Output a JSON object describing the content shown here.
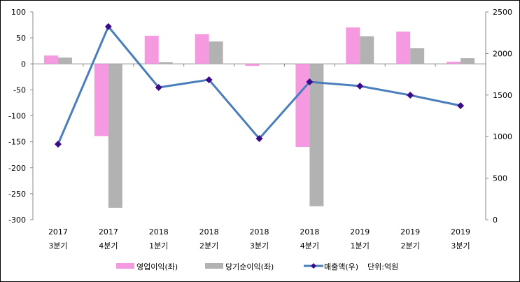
{
  "chart_data": {
    "type": "bar+line",
    "categories": [
      {
        "year": "2017",
        "quarter": "3분기"
      },
      {
        "year": "2017",
        "quarter": "4분기"
      },
      {
        "year": "2018",
        "quarter": "1분기"
      },
      {
        "year": "2018",
        "quarter": "2분기"
      },
      {
        "year": "2018",
        "quarter": "3분기"
      },
      {
        "year": "2018",
        "quarter": "4분기"
      },
      {
        "year": "2019",
        "quarter": "1분기"
      },
      {
        "year": "2019",
        "quarter": "2분기"
      },
      {
        "year": "2019",
        "quarter": "3분기"
      }
    ],
    "series": [
      {
        "name": "영업이익(좌)",
        "type": "bar",
        "axis": "left",
        "color": "#f59ae0",
        "values": [
          16,
          -139,
          54,
          57,
          -4,
          -160,
          70,
          62,
          4
        ]
      },
      {
        "name": "당기순이익(좌)",
        "type": "bar",
        "axis": "left",
        "color": "#b2b2b2",
        "values": [
          12,
          -277,
          3,
          43,
          0,
          -274,
          53,
          30,
          11
        ]
      },
      {
        "name": "매출액(우)",
        "type": "line",
        "axis": "right",
        "color": "#4a7ebb",
        "marker_color": "#3a0a8a",
        "values": [
          909,
          2323,
          1591,
          1684,
          976,
          1658,
          1608,
          1498,
          1372
        ]
      }
    ],
    "left_axis": {
      "ylim": [
        -300,
        100
      ],
      "ticks": [
        100,
        50,
        0,
        -50,
        -100,
        -150,
        -200,
        -250,
        -300
      ]
    },
    "right_axis": {
      "ylim": [
        0,
        2500
      ],
      "ticks": [
        2500,
        2000,
        1500,
        1000,
        500,
        0
      ]
    },
    "unit_note": "단위:억원",
    "legend_placement": "bottom",
    "grid": false
  }
}
